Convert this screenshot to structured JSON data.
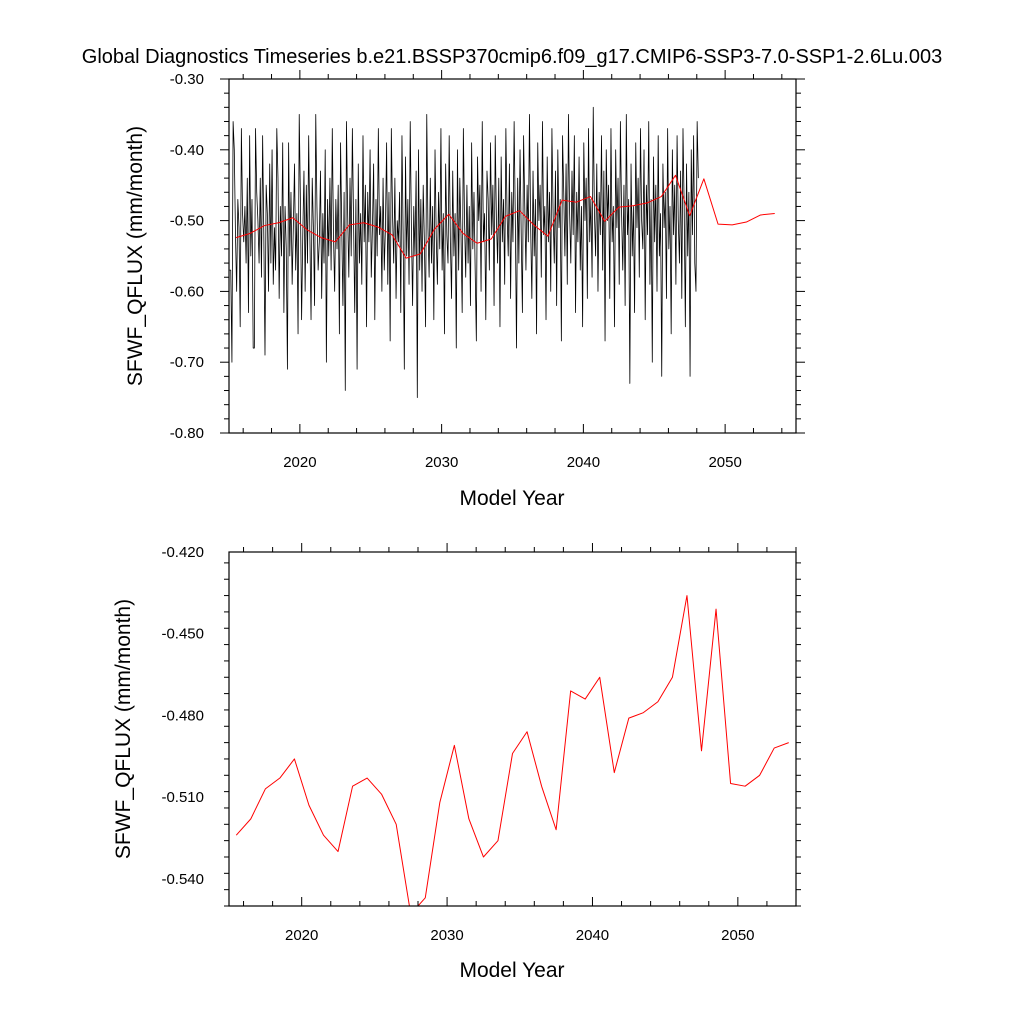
{
  "title": "Global Diagnostics Timeseries b.e21.BSSP370cmip6.f09_g17.CMIP6-SSP3-7.0-SSP1-2.6Lu.003",
  "chart_data": [
    {
      "type": "line",
      "xlabel": "Model Year",
      "ylabel": "SFWF_QFLUX (mm/month)",
      "xlim": [
        2015,
        2055
      ],
      "ylim": [
        -0.8,
        -0.3
      ],
      "xticks": [
        "2020",
        "2030",
        "2040",
        "2050"
      ],
      "yticks": [
        "-0.30",
        "-0.40",
        "-0.50",
        "-0.60",
        "-0.70",
        "-0.80"
      ],
      "series": [
        {
          "color": "#000000",
          "x_start": 2015.04,
          "x_step": 0.0833,
          "values": [
            -0.57,
            -0.57,
            -0.7,
            -0.36,
            -0.4,
            -0.52,
            -0.6,
            -0.47,
            -0.51,
            -0.65,
            -0.37,
            -0.49,
            -0.53,
            -0.48,
            -0.56,
            -0.44,
            -0.63,
            -0.38,
            -0.55,
            -0.47,
            -0.68,
            -0.68,
            -0.37,
            -0.46,
            -0.5,
            -0.56,
            -0.44,
            -0.58,
            -0.38,
            -0.52,
            -0.69,
            -0.45,
            -0.49,
            -0.6,
            -0.42,
            -0.56,
            -0.4,
            -0.59,
            -0.51,
            -0.57,
            -0.37,
            -0.44,
            -0.61,
            -0.48,
            -0.55,
            -0.39,
            -0.63,
            -0.48,
            -0.54,
            -0.71,
            -0.39,
            -0.55,
            -0.46,
            -0.59,
            -0.51,
            -0.42,
            -0.57,
            -0.49,
            -0.66,
            -0.35,
            -0.47,
            -0.64,
            -0.52,
            -0.43,
            -0.6,
            -0.45,
            -0.56,
            -0.38,
            -0.52,
            -0.64,
            -0.44,
            -0.51,
            -0.62,
            -0.35,
            -0.48,
            -0.57,
            -0.53,
            -0.43,
            -0.61,
            -0.49,
            -0.56,
            -0.4,
            -0.7,
            -0.47,
            -0.55,
            -0.44,
            -0.57,
            -0.37,
            -0.52,
            -0.6,
            -0.47,
            -0.54,
            -0.45,
            -0.66,
            -0.39,
            -0.51,
            -0.62,
            -0.46,
            -0.74,
            -0.36,
            -0.49,
            -0.58,
            -0.44,
            -0.55,
            -0.37,
            -0.5,
            -0.63,
            -0.47,
            -0.71,
            -0.42,
            -0.56,
            -0.49,
            -0.59,
            -0.38,
            -0.53,
            -0.45,
            -0.65,
            -0.46,
            -0.53,
            -0.4,
            -0.58,
            -0.51,
            -0.42,
            -0.64,
            -0.47,
            -0.55,
            -0.37,
            -0.52,
            -0.48,
            -0.6,
            -0.44,
            -0.57,
            -0.51,
            -0.39,
            -0.59,
            -0.46,
            -0.67,
            -0.37,
            -0.49,
            -0.56,
            -0.44,
            -0.61,
            -0.5,
            -0.53,
            -0.46,
            -0.63,
            -0.38,
            -0.52,
            -0.71,
            -0.41,
            -0.55,
            -0.47,
            -0.59,
            -0.36,
            -0.51,
            -0.62,
            -0.48,
            -0.55,
            -0.43,
            -0.75,
            -0.4,
            -0.57,
            -0.47,
            -0.6,
            -0.45,
            -0.53,
            -0.65,
            -0.35,
            -0.51,
            -0.58,
            -0.44,
            -0.56,
            -0.48,
            -0.64,
            -0.4,
            -0.52,
            -0.59,
            -0.46,
            -0.54,
            -0.37,
            -0.57,
            -0.49,
            -0.66,
            -0.42,
            -0.52,
            -0.56,
            -0.38,
            -0.53,
            -0.61,
            -0.43,
            -0.55,
            -0.49,
            -0.68,
            -0.4,
            -0.57,
            -0.44,
            -0.52,
            -0.63,
            -0.37,
            -0.5,
            -0.58,
            -0.45,
            -0.56,
            -0.48,
            -0.62,
            -0.39,
            -0.54,
            -0.46,
            -0.57,
            -0.67,
            -0.41,
            -0.5,
            -0.45,
            -0.6,
            -0.36,
            -0.53,
            -0.49,
            -0.64,
            -0.43,
            -0.47,
            -0.57,
            -0.39,
            -0.52,
            -0.45,
            -0.62,
            -0.38,
            -0.5,
            -0.56,
            -0.44,
            -0.65,
            -0.41,
            -0.53,
            -0.47,
            -0.59,
            -0.37,
            -0.49,
            -0.55,
            -0.42,
            -0.61,
            -0.46,
            -0.53,
            -0.36,
            -0.5,
            -0.68,
            -0.44,
            -0.56,
            -0.4,
            -0.52,
            -0.63,
            -0.38,
            -0.48,
            -0.57,
            -0.45,
            -0.53,
            -0.35,
            -0.51,
            -0.61,
            -0.43,
            -0.55,
            -0.47,
            -0.66,
            -0.39,
            -0.5,
            -0.45,
            -0.58,
            -0.36,
            -0.52,
            -0.48,
            -0.64,
            -0.41,
            -0.53,
            -0.46,
            -0.6,
            -0.37,
            -0.49,
            -0.56,
            -0.43,
            -0.62,
            -0.4,
            -0.51,
            -0.47,
            -0.67,
            -0.38,
            -0.46,
            -0.55,
            -0.42,
            -0.59,
            -0.35,
            -0.49,
            -0.56,
            -0.43,
            -0.52,
            -0.38,
            -0.63,
            -0.46,
            -0.53,
            -0.41,
            -0.57,
            -0.48,
            -0.65,
            -0.39,
            -0.5,
            -0.44,
            -0.61,
            -0.37,
            -0.53,
            -0.47,
            -0.58,
            -0.34,
            -0.49,
            -0.55,
            -0.42,
            -0.6,
            -0.46,
            -0.52,
            -0.38,
            -0.57,
            -0.43,
            -0.67,
            -0.4,
            -0.5,
            -0.45,
            -0.61,
            -0.37,
            -0.53,
            -0.48,
            -0.65,
            -0.4,
            -0.51,
            -0.44,
            -0.59,
            -0.36,
            -0.49,
            -0.57,
            -0.45,
            -0.62,
            -0.35,
            -0.52,
            -0.47,
            -0.73,
            -0.42,
            -0.55,
            -0.48,
            -0.63,
            -0.39,
            -0.51,
            -0.44,
            -0.58,
            -0.37,
            -0.5,
            -0.54,
            -0.4,
            -0.64,
            -0.45,
            -0.52,
            -0.36,
            -0.59,
            -0.47,
            -0.7,
            -0.41,
            -0.53,
            -0.45,
            -0.6,
            -0.38,
            -0.55,
            -0.49,
            -0.72,
            -0.42,
            -0.51,
            -0.46,
            -0.61,
            -0.37,
            -0.54,
            -0.48,
            -0.66,
            -0.4,
            -0.52,
            -0.45,
            -0.59,
            -0.38,
            -0.5,
            -0.56,
            -0.43,
            -0.61,
            -0.37,
            -0.48,
            -0.65,
            -0.42,
            -0.55,
            -0.46,
            -0.72,
            -0.4,
            -0.52,
            -0.38,
            -0.56,
            -0.6,
            -0.36,
            -0.44
          ]
        },
        {
          "color": "#ff0000",
          "x": [
            2015.5,
            2016.5,
            2017.5,
            2018.5,
            2019.5,
            2020.5,
            2021.5,
            2022.5,
            2023.5,
            2024.5,
            2025.5,
            2026.5,
            2027.5,
            2028.5,
            2029.5,
            2030.5,
            2031.5,
            2032.5,
            2033.5,
            2034.5,
            2035.5,
            2036.5,
            2037.5,
            2038.5,
            2039.5,
            2040.5,
            2041.5,
            2042.5,
            2043.5,
            2044.5,
            2045.5,
            2046.5,
            2047.5,
            2048.5,
            2049.5,
            2050.5,
            2051.5,
            2052.5,
            2053.5
          ],
          "values": [
            -0.524,
            -0.518,
            -0.507,
            -0.503,
            -0.496,
            -0.513,
            -0.524,
            -0.53,
            -0.506,
            -0.503,
            -0.509,
            -0.52,
            -0.553,
            -0.547,
            -0.512,
            -0.491,
            -0.518,
            -0.532,
            -0.526,
            -0.494,
            -0.486,
            -0.506,
            -0.522,
            -0.471,
            -0.474,
            -0.466,
            -0.501,
            -0.481,
            -0.479,
            -0.475,
            -0.466,
            -0.436,
            -0.493,
            -0.441,
            -0.505,
            -0.506,
            -0.502,
            -0.492,
            -0.49
          ]
        }
      ]
    },
    {
      "type": "line",
      "xlabel": "Model Year",
      "ylabel": "SFWF_QFLUX (mm/month)",
      "xlim": [
        2015,
        2054
      ],
      "ylim": [
        -0.55,
        -0.42
      ],
      "xticks": [
        "2020",
        "2030",
        "2040",
        "2050"
      ],
      "yticks": [
        "-0.420",
        "-0.450",
        "-0.480",
        "-0.510",
        "-0.540"
      ],
      "series": [
        {
          "color": "#ff0000",
          "x": [
            2015.5,
            2016.5,
            2017.5,
            2018.5,
            2019.5,
            2020.5,
            2021.5,
            2022.5,
            2023.5,
            2024.5,
            2025.5,
            2026.5,
            2027.5,
            2028.5,
            2029.5,
            2030.5,
            2031.5,
            2032.5,
            2033.5,
            2034.5,
            2035.5,
            2036.5,
            2037.5,
            2038.5,
            2039.5,
            2040.5,
            2041.5,
            2042.5,
            2043.5,
            2044.5,
            2045.5,
            2046.5,
            2047.5,
            2048.5,
            2049.5,
            2050.5,
            2051.5,
            2052.5,
            2053.5
          ],
          "values": [
            -0.524,
            -0.518,
            -0.507,
            -0.503,
            -0.496,
            -0.513,
            -0.524,
            -0.53,
            -0.506,
            -0.503,
            -0.509,
            -0.52,
            -0.553,
            -0.547,
            -0.512,
            -0.491,
            -0.518,
            -0.532,
            -0.526,
            -0.494,
            -0.486,
            -0.506,
            -0.522,
            -0.471,
            -0.474,
            -0.466,
            -0.501,
            -0.481,
            -0.479,
            -0.475,
            -0.466,
            -0.436,
            -0.493,
            -0.441,
            -0.505,
            -0.506,
            -0.502,
            -0.492,
            -0.49
          ]
        }
      ]
    }
  ]
}
